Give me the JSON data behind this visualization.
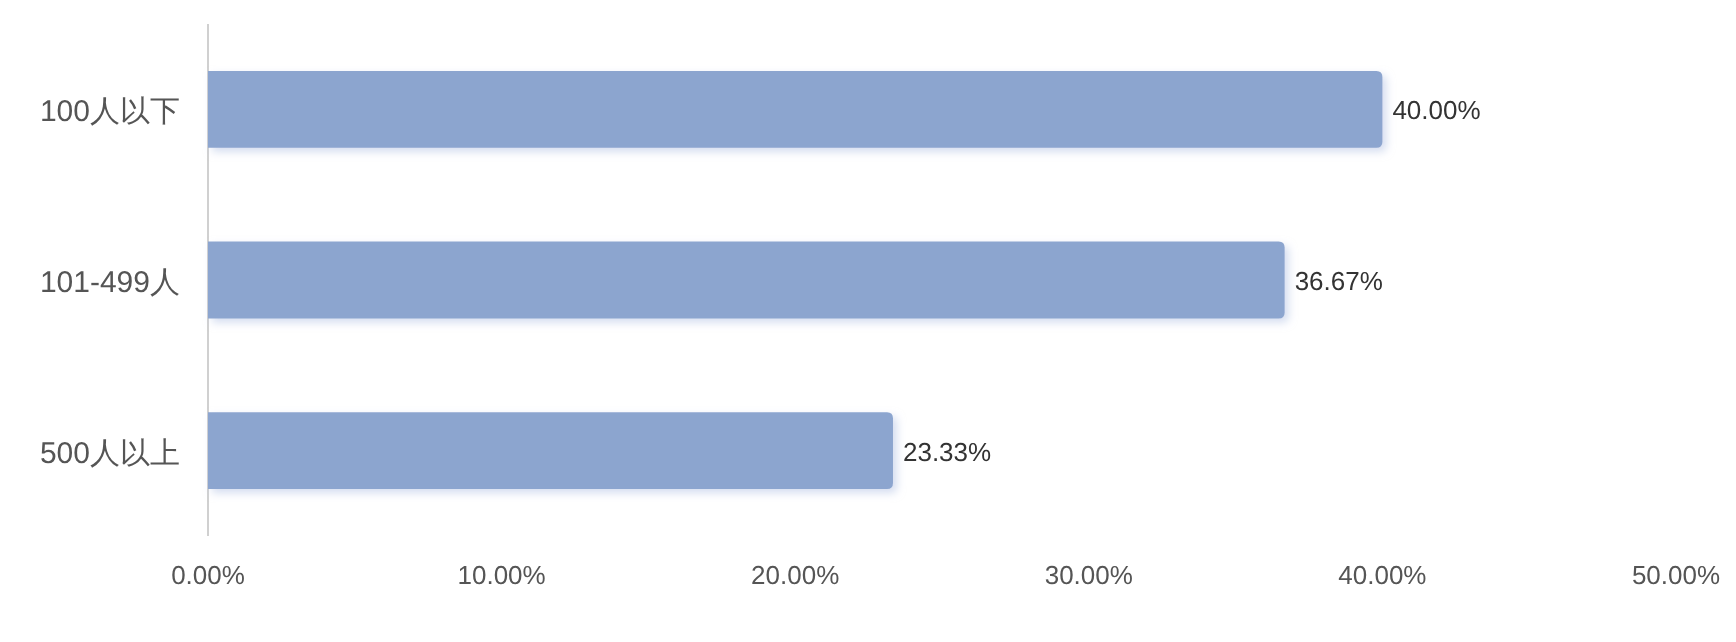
{
  "chart_data": {
    "type": "bar",
    "orientation": "horizontal",
    "categories": [
      "100人以下",
      "101-499人",
      "500人以上"
    ],
    "values": [
      40,
      36.67,
      23.33
    ],
    "value_labels": [
      "40.00%",
      "36.67%",
      "23.33%"
    ],
    "color": "#8ca5cf",
    "xlim": [
      0,
      50
    ],
    "xticks": [
      {
        "value": 0,
        "label": "0.00%"
      },
      {
        "value": 10,
        "label": "10.00%"
      },
      {
        "value": 20,
        "label": "20.00%"
      },
      {
        "value": 30,
        "label": "30.00%"
      },
      {
        "value": 40,
        "label": "40.00%"
      },
      {
        "value": 50,
        "label": "50.00%"
      }
    ],
    "grid": false
  }
}
